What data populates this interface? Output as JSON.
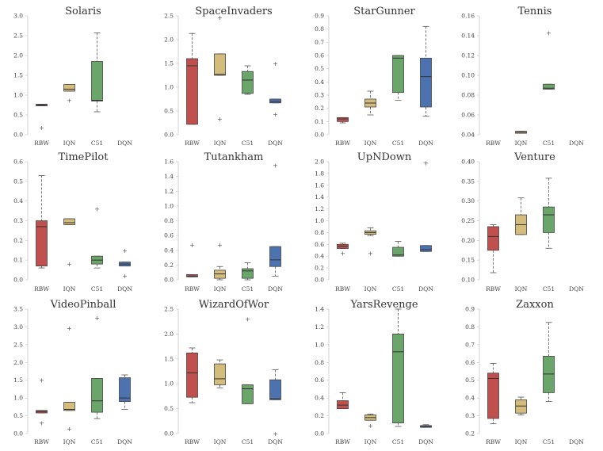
{
  "chart_data": {
    "type": "boxplot",
    "categories": [
      "RBW",
      "IQN",
      "C51",
      "DQN"
    ],
    "colors": {
      "RBW": "#c0504d",
      "IQN": "#d4bc7d",
      "C51": "#6aa56a",
      "DQN": "#4c72b0"
    },
    "panels": [
      {
        "title": "Solaris",
        "ylim": [
          0,
          3.0
        ],
        "yticks": [
          "0.0",
          "0.5",
          "1.0",
          "1.5",
          "2.0",
          "2.5",
          "3.0"
        ],
        "ytick_values": [
          0,
          0.5,
          1,
          1.5,
          2,
          2.5,
          3
        ],
        "boxes": [
          {
            "cat": "RBW",
            "q1": 0.73,
            "median": 0.75,
            "q3": 0.77,
            "wlo": 0.73,
            "whi": 0.77,
            "fliers": [
              0.18
            ]
          },
          {
            "cat": "IQN",
            "q1": 1.1,
            "median": 1.15,
            "q3": 1.27,
            "wlo": 1.1,
            "whi": 1.27,
            "fliers": [
              0.87
            ]
          },
          {
            "cat": "C51",
            "q1": 0.85,
            "median": 0.87,
            "q3": 1.85,
            "wlo": 0.58,
            "whi": 2.57,
            "fliers": []
          }
        ]
      },
      {
        "title": "SpaceInvaders",
        "ylim": [
          0,
          2.5
        ],
        "yticks": [
          "0.0",
          "0.5",
          "1.0",
          "1.5",
          "2.0",
          "2.5"
        ],
        "ytick_values": [
          0,
          0.5,
          1,
          1.5,
          2,
          2.5
        ],
        "boxes": [
          {
            "cat": "RBW",
            "q1": 0.22,
            "median": 1.45,
            "q3": 1.6,
            "wlo": 0.22,
            "whi": 2.13,
            "fliers": []
          },
          {
            "cat": "IQN",
            "q1": 1.25,
            "median": 1.27,
            "q3": 1.7,
            "wlo": 1.25,
            "whi": 1.7,
            "fliers": [
              2.47,
              0.33
            ]
          },
          {
            "cat": "C51",
            "q1": 0.87,
            "median": 1.15,
            "q3": 1.33,
            "wlo": 0.85,
            "whi": 1.45,
            "fliers": []
          },
          {
            "cat": "DQN",
            "q1": 0.67,
            "median": 0.7,
            "q3": 0.75,
            "wlo": 0.67,
            "whi": 0.75,
            "fliers": [
              1.5,
              0.43
            ]
          }
        ]
      },
      {
        "title": "StarGunner",
        "ylim": [
          0,
          0.9
        ],
        "yticks": [
          "0.0",
          "0.1",
          "0.2",
          "0.3",
          "0.4",
          "0.5",
          "0.6",
          "0.7",
          "0.8",
          "0.9"
        ],
        "ytick_values": [
          0,
          0.1,
          0.2,
          0.3,
          0.4,
          0.5,
          0.6,
          0.7,
          0.8,
          0.9
        ],
        "boxes": [
          {
            "cat": "RBW",
            "q1": 0.1,
            "median": 0.12,
            "q3": 0.13,
            "wlo": 0.09,
            "whi": 0.13,
            "fliers": []
          },
          {
            "cat": "IQN",
            "q1": 0.21,
            "median": 0.24,
            "q3": 0.27,
            "wlo": 0.15,
            "whi": 0.33,
            "fliers": []
          },
          {
            "cat": "C51",
            "q1": 0.32,
            "median": 0.58,
            "q3": 0.6,
            "wlo": 0.26,
            "whi": 0.6,
            "fliers": []
          },
          {
            "cat": "DQN",
            "q1": 0.21,
            "median": 0.44,
            "q3": 0.58,
            "wlo": 0.14,
            "whi": 0.82,
            "fliers": []
          }
        ]
      },
      {
        "title": "Tennis",
        "ylim": [
          0.04,
          0.16
        ],
        "yticks": [
          "0.04",
          "0.06",
          "0.08",
          "0.10",
          "0.12",
          "0.14",
          "0.16"
        ],
        "ytick_values": [
          0.04,
          0.06,
          0.08,
          0.1,
          0.12,
          0.14,
          0.16
        ],
        "boxes": [
          {
            "cat": "IQN",
            "q1": 0.0415,
            "median": 0.0425,
            "q3": 0.0435,
            "wlo": 0.0415,
            "whi": 0.0435,
            "fliers": []
          },
          {
            "cat": "C51",
            "q1": 0.086,
            "median": 0.087,
            "q3": 0.091,
            "wlo": 0.086,
            "whi": 0.091,
            "fliers": [
              0.143
            ]
          }
        ]
      },
      {
        "title": "TimePilot",
        "ylim": [
          0,
          0.6
        ],
        "yticks": [
          "0.0",
          "0.1",
          "0.2",
          "0.3",
          "0.4",
          "0.5",
          "0.6"
        ],
        "ytick_values": [
          0,
          0.1,
          0.2,
          0.3,
          0.4,
          0.5,
          0.6
        ],
        "boxes": [
          {
            "cat": "RBW",
            "q1": 0.07,
            "median": 0.27,
            "q3": 0.3,
            "wlo": 0.06,
            "whi": 0.53,
            "fliers": []
          },
          {
            "cat": "IQN",
            "q1": 0.28,
            "median": 0.29,
            "q3": 0.31,
            "wlo": 0.28,
            "whi": 0.31,
            "fliers": [
              0.08
            ]
          },
          {
            "cat": "C51",
            "q1": 0.08,
            "median": 0.1,
            "q3": 0.12,
            "wlo": 0.06,
            "whi": 0.12,
            "fliers": [
              0.36
            ]
          },
          {
            "cat": "DQN",
            "q1": 0.07,
            "median": 0.08,
            "q3": 0.09,
            "wlo": 0.07,
            "whi": 0.09,
            "fliers": [
              0.15,
              0.02
            ]
          }
        ]
      },
      {
        "title": "Tutankham",
        "ylim": [
          0,
          1.6
        ],
        "yticks": [
          "0.0",
          "0.2",
          "0.4",
          "0.6",
          "0.8",
          "1.0",
          "1.2",
          "1.4",
          "1.6"
        ],
        "ytick_values": [
          0,
          0.2,
          0.4,
          0.6,
          0.8,
          1,
          1.2,
          1.4,
          1.6
        ],
        "boxes": [
          {
            "cat": "RBW",
            "q1": 0.04,
            "median": 0.05,
            "q3": 0.07,
            "wlo": 0.04,
            "whi": 0.07,
            "fliers": [
              0.47
            ]
          },
          {
            "cat": "IQN",
            "q1": 0.02,
            "median": 0.08,
            "q3": 0.13,
            "wlo": 0.0,
            "whi": 0.18,
            "fliers": [
              0.47
            ]
          },
          {
            "cat": "C51",
            "q1": 0.02,
            "median": 0.12,
            "q3": 0.15,
            "wlo": 0.0,
            "whi": 0.23,
            "fliers": []
          },
          {
            "cat": "DQN",
            "q1": 0.18,
            "median": 0.27,
            "q3": 0.45,
            "wlo": 0.05,
            "whi": 0.45,
            "fliers": [
              1.55
            ]
          }
        ]
      },
      {
        "title": "UpNDown",
        "ylim": [
          0,
          2.0
        ],
        "yticks": [
          "0.0",
          "0.2",
          "0.4",
          "0.6",
          "0.8",
          "1.0",
          "1.2",
          "1.4",
          "1.6",
          "1.8",
          "2.0"
        ],
        "ytick_values": [
          0,
          0.2,
          0.4,
          0.6,
          0.8,
          1,
          1.2,
          1.4,
          1.6,
          1.8,
          2
        ],
        "boxes": [
          {
            "cat": "RBW",
            "q1": 0.53,
            "median": 0.57,
            "q3": 0.6,
            "wlo": 0.53,
            "whi": 0.62,
            "fliers": [
              0.45
            ]
          },
          {
            "cat": "IQN",
            "q1": 0.77,
            "median": 0.8,
            "q3": 0.83,
            "wlo": 0.75,
            "whi": 0.88,
            "fliers": [
              0.45
            ]
          },
          {
            "cat": "C51",
            "q1": 0.4,
            "median": 0.42,
            "q3": 0.55,
            "wlo": 0.4,
            "whi": 0.65,
            "fliers": []
          },
          {
            "cat": "DQN",
            "q1": 0.48,
            "median": 0.51,
            "q3": 0.58,
            "wlo": 0.48,
            "whi": 0.58,
            "fliers": [
              1.98
            ]
          }
        ]
      },
      {
        "title": "Venture",
        "ylim": [
          0.1,
          0.4
        ],
        "yticks": [
          "0.10",
          "0.15",
          "0.20",
          "0.25",
          "0.30",
          "0.35",
          "0.40"
        ],
        "ytick_values": [
          0.1,
          0.15,
          0.2,
          0.25,
          0.3,
          0.35,
          0.4
        ],
        "boxes": [
          {
            "cat": "RBW",
            "q1": 0.175,
            "median": 0.21,
            "q3": 0.235,
            "wlo": 0.118,
            "whi": 0.24,
            "fliers": []
          },
          {
            "cat": "IQN",
            "q1": 0.215,
            "median": 0.24,
            "q3": 0.265,
            "wlo": 0.215,
            "whi": 0.308,
            "fliers": []
          },
          {
            "cat": "C51",
            "q1": 0.22,
            "median": 0.265,
            "q3": 0.285,
            "wlo": 0.18,
            "whi": 0.358,
            "fliers": []
          }
        ]
      },
      {
        "title": "VideoPinball",
        "ylim": [
          0,
          3.5
        ],
        "yticks": [
          "0.0",
          "0.5",
          "1.0",
          "1.5",
          "2.0",
          "2.5",
          "3.0",
          "3.5"
        ],
        "ytick_values": [
          0,
          0.5,
          1,
          1.5,
          2,
          2.5,
          3,
          3.5
        ],
        "boxes": [
          {
            "cat": "RBW",
            "q1": 0.58,
            "median": 0.62,
            "q3": 0.65,
            "wlo": 0.58,
            "whi": 0.65,
            "fliers": [
              1.5,
              0.3
            ]
          },
          {
            "cat": "IQN",
            "q1": 0.65,
            "median": 0.68,
            "q3": 0.88,
            "wlo": 0.65,
            "whi": 0.88,
            "fliers": [
              2.97,
              0.13
            ]
          },
          {
            "cat": "C51",
            "q1": 0.6,
            "median": 0.92,
            "q3": 1.55,
            "wlo": 0.42,
            "whi": 1.55,
            "fliers": [
              3.25
            ]
          },
          {
            "cat": "DQN",
            "q1": 0.9,
            "median": 1.0,
            "q3": 1.57,
            "wlo": 0.68,
            "whi": 1.65,
            "fliers": []
          }
        ]
      },
      {
        "title": "WizardOfWor",
        "ylim": [
          0,
          2.5
        ],
        "yticks": [
          "0.0",
          "0.5",
          "1.0",
          "1.5",
          "2.0",
          "2.5"
        ],
        "ytick_values": [
          0,
          0.5,
          1,
          1.5,
          2,
          2.5
        ],
        "boxes": [
          {
            "cat": "RBW",
            "q1": 0.73,
            "median": 1.22,
            "q3": 1.62,
            "wlo": 0.62,
            "whi": 1.72,
            "fliers": []
          },
          {
            "cat": "IQN",
            "q1": 0.98,
            "median": 1.1,
            "q3": 1.4,
            "wlo": 0.92,
            "whi": 1.48,
            "fliers": []
          },
          {
            "cat": "C51",
            "q1": 0.6,
            "median": 0.9,
            "q3": 0.98,
            "wlo": 0.6,
            "whi": 0.98,
            "fliers": [
              2.3
            ]
          },
          {
            "cat": "DQN",
            "q1": 0.68,
            "median": 0.7,
            "q3": 1.08,
            "wlo": 0.68,
            "whi": 1.28,
            "fliers": [
              0.0
            ]
          }
        ]
      },
      {
        "title": "YarsRevenge",
        "ylim": [
          0,
          1.4
        ],
        "yticks": [
          "0.0",
          "0.2",
          "0.4",
          "0.6",
          "0.8",
          "1.0",
          "1.2",
          "1.4"
        ],
        "ytick_values": [
          0,
          0.2,
          0.4,
          0.6,
          0.8,
          1,
          1.2,
          1.4
        ],
        "boxes": [
          {
            "cat": "RBW",
            "q1": 0.28,
            "median": 0.32,
            "q3": 0.37,
            "wlo": 0.28,
            "whi": 0.46,
            "fliers": []
          },
          {
            "cat": "IQN",
            "q1": 0.15,
            "median": 0.18,
            "q3": 0.21,
            "wlo": 0.15,
            "whi": 0.22,
            "fliers": [
              0.09
            ]
          },
          {
            "cat": "C51",
            "q1": 0.12,
            "median": 0.92,
            "q3": 1.12,
            "wlo": 0.08,
            "whi": 1.4,
            "fliers": []
          },
          {
            "cat": "DQN",
            "q1": 0.07,
            "median": 0.08,
            "q3": 0.09,
            "wlo": 0.07,
            "whi": 0.1,
            "fliers": []
          }
        ]
      },
      {
        "title": "Zaxxon",
        "ylim": [
          0.2,
          0.9
        ],
        "yticks": [
          "0.2",
          "0.3",
          "0.4",
          "0.5",
          "0.6",
          "0.7",
          "0.8",
          "0.9"
        ],
        "ytick_values": [
          0.2,
          0.3,
          0.4,
          0.5,
          0.6,
          0.7,
          0.8,
          0.9
        ],
        "boxes": [
          {
            "cat": "RBW",
            "q1": 0.285,
            "median": 0.51,
            "q3": 0.54,
            "wlo": 0.255,
            "whi": 0.595,
            "fliers": []
          },
          {
            "cat": "IQN",
            "q1": 0.315,
            "median": 0.355,
            "q3": 0.39,
            "wlo": 0.305,
            "whi": 0.405,
            "fliers": []
          },
          {
            "cat": "C51",
            "q1": 0.43,
            "median": 0.535,
            "q3": 0.635,
            "wlo": 0.38,
            "whi": 0.825,
            "fliers": []
          }
        ]
      }
    ]
  }
}
